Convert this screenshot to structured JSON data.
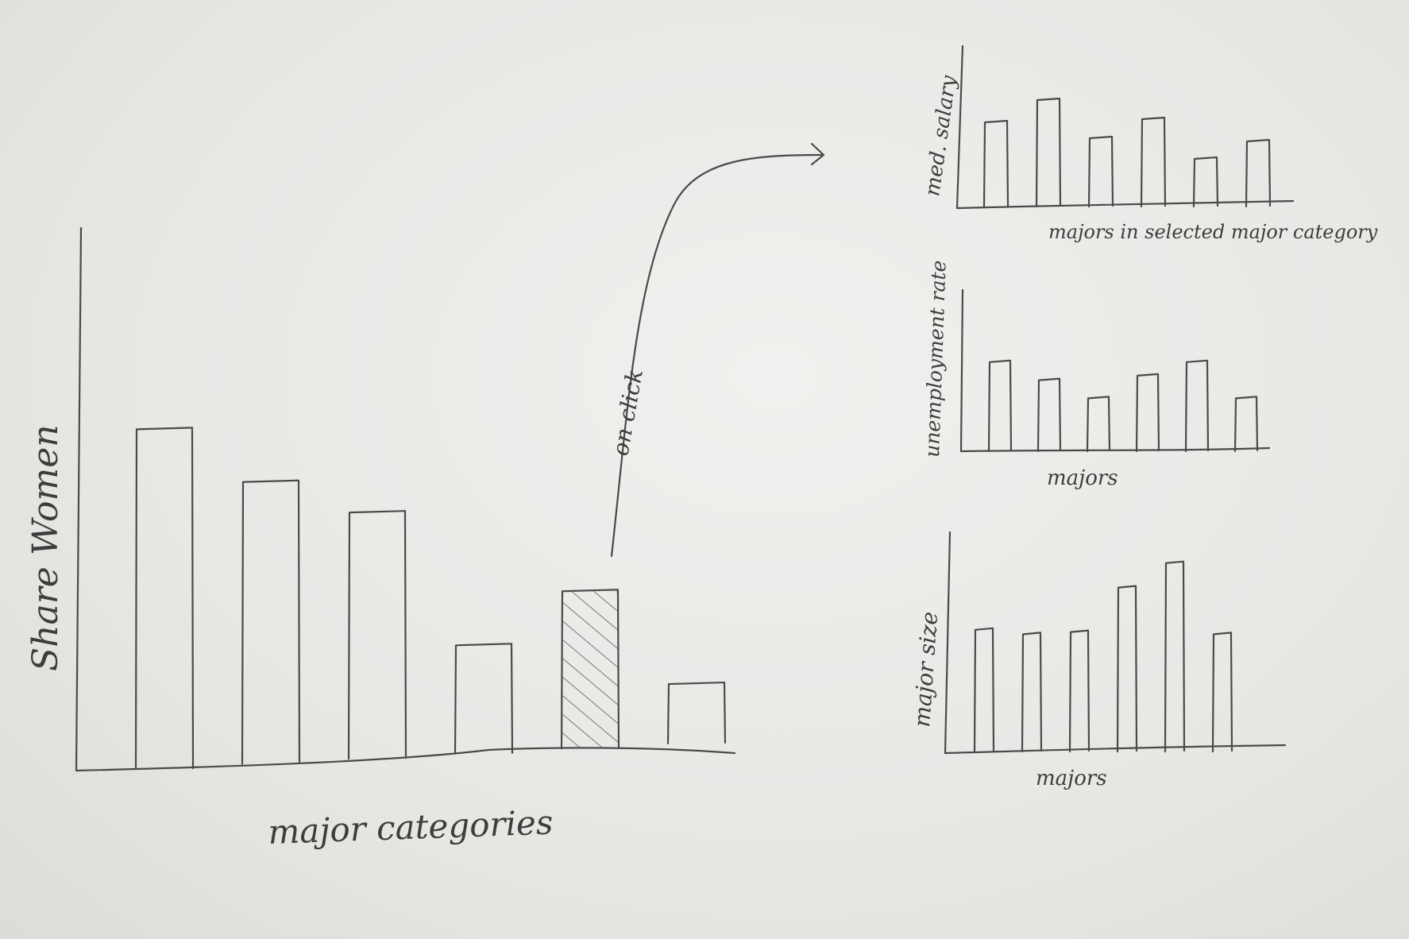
{
  "main_chart": {
    "ylabel": "Share Women",
    "xlabel": "major categories",
    "values": [
      0.76,
      0.63,
      0.55,
      0.24,
      0.35,
      0.13
    ],
    "selected_index": 4
  },
  "annotation": {
    "arrow_label": "on click"
  },
  "detail_charts": [
    {
      "ylabel": "med. salary",
      "xlabel": "majors in selected major category",
      "values": [
        0.52,
        0.66,
        0.42,
        0.54,
        0.29,
        0.4
      ]
    },
    {
      "ylabel": "unemployment rate",
      "xlabel": "majors",
      "values": [
        0.58,
        0.46,
        0.34,
        0.49,
        0.58,
        0.34
      ]
    },
    {
      "ylabel": "major size",
      "xlabel": "majors",
      "values": [
        0.54,
        0.52,
        0.53,
        0.73,
        0.84,
        0.52
      ]
    }
  ],
  "colors": {
    "pencil": "#4a4a4a",
    "paper": "#ecebe8"
  }
}
